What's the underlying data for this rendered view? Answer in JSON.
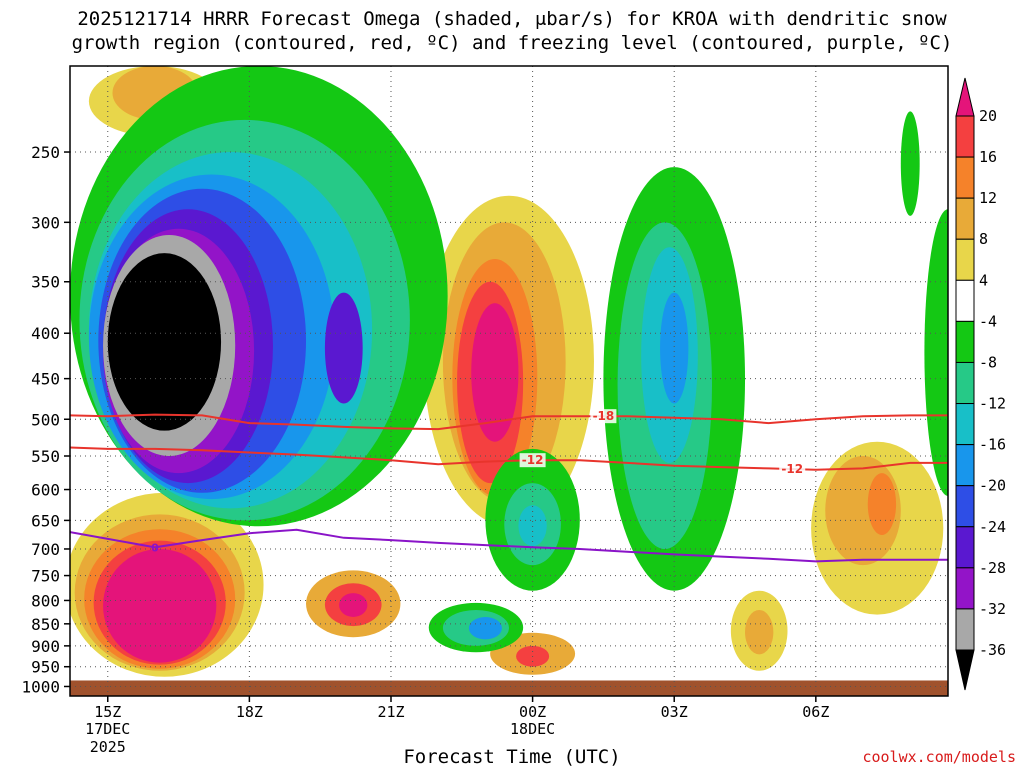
{
  "header": {
    "title_line1": "2025121714 HRRR Forecast Omega (shaded, μbar/s) for KROA with dendritic snow",
    "title_line2": "growth region (contoured, red, ºC) and freezing level (contoured, purple, ºC)"
  },
  "footer": {
    "xaxis_title": "Forecast Time (UTC)",
    "credit": "coolwx.com/models"
  },
  "chart_data": {
    "type": "heatmap",
    "title": "2025121714 HRRR Forecast Omega (shaded, μbar/s) for KROA with dendritic snow growth region (contoured, red, ºC) and freezing level (contoured, purple, ºC)",
    "xlabel": "Forecast Time (UTC)",
    "ylabel": "",
    "x_range_hours": [
      14.2,
      32.8
    ],
    "y_range_mb": [
      1025,
      200
    ],
    "grid": "dotted",
    "y_ticks": [
      250,
      300,
      350,
      400,
      450,
      500,
      550,
      600,
      650,
      700,
      750,
      800,
      850,
      900,
      950,
      1000
    ],
    "x_ticks": [
      {
        "hour": 15,
        "label": "15Z",
        "sub1": "17DEC",
        "sub2": "2025"
      },
      {
        "hour": 18,
        "label": "18Z",
        "sub1": "",
        "sub2": ""
      },
      {
        "hour": 21,
        "label": "21Z",
        "sub1": "",
        "sub2": ""
      },
      {
        "hour": 24,
        "label": "00Z",
        "sub1": "18DEC",
        "sub2": ""
      },
      {
        "hour": 27,
        "label": "03Z",
        "sub1": "",
        "sub2": ""
      },
      {
        "hour": 30,
        "label": "06Z",
        "sub1": "",
        "sub2": ""
      }
    ],
    "colorbar": {
      "labels": [
        "20",
        "16",
        "12",
        "8",
        "4",
        "-4",
        "-8",
        "-12",
        "-16",
        "-20",
        "-24",
        "-28",
        "-32",
        "-36"
      ],
      "levels": [
        20,
        16,
        12,
        8,
        4,
        -4,
        -8,
        -12,
        -16,
        -20,
        -24,
        -28,
        -32,
        -36
      ],
      "colors": [
        "#e4147a",
        "#f44040",
        "#f5822a",
        "#e8aa38",
        "#e8d64a",
        "#ffffff",
        "#14c814",
        "#26c987",
        "#18bfc8",
        "#1896ec",
        "#2e4ee6",
        "#5a18d0",
        "#9314c8",
        "#a8a8a8",
        "#000000"
      ]
    },
    "omega_regions": [
      {
        "level": 4,
        "color": "#e8d64a",
        "hour": 16.2,
        "mb": 790,
        "rh": 2.1,
        "rmb": 185
      },
      {
        "level": 8,
        "color": "#e8aa38",
        "hour": 16.1,
        "mb": 800,
        "rh": 1.8,
        "rmb": 160
      },
      {
        "level": 12,
        "color": "#f5822a",
        "hour": 16.1,
        "mb": 810,
        "rh": 1.6,
        "rmb": 145
      },
      {
        "level": 16,
        "color": "#f44040",
        "hour": 16.1,
        "mb": 815,
        "rh": 1.4,
        "rmb": 130
      },
      {
        "level": 20,
        "color": "#e4147a",
        "hour": 16.1,
        "mb": 820,
        "rh": 1.2,
        "rmb": 120
      },
      {
        "level": 4,
        "color": "#e8d64a",
        "hour": 23.5,
        "mb": 470,
        "rh": 1.8,
        "rmb": 190
      },
      {
        "level": 8,
        "color": "#e8aa38",
        "hour": 23.4,
        "mb": 460,
        "rh": 1.3,
        "rmb": 160
      },
      {
        "level": 12,
        "color": "#f5822a",
        "hour": 23.2,
        "mb": 470,
        "rh": 0.9,
        "rmb": 140
      },
      {
        "level": 16,
        "color": "#f44040",
        "hour": 23.1,
        "mb": 470,
        "rh": 0.7,
        "rmb": 120
      },
      {
        "level": 20,
        "color": "#e4147a",
        "hour": 23.2,
        "mb": 450,
        "rh": 0.5,
        "rmb": 80
      },
      {
        "level": 8,
        "color": "#e8aa38",
        "hour": 20.2,
        "mb": 810,
        "rh": 1.0,
        "rmb": 70
      },
      {
        "level": 16,
        "color": "#f44040",
        "hour": 20.2,
        "mb": 810,
        "rh": 0.6,
        "rmb": 45
      },
      {
        "level": 20,
        "color": "#e4147a",
        "hour": 20.2,
        "mb": 810,
        "rh": 0.3,
        "rmb": 25
      },
      {
        "level": 4,
        "color": "#e8d64a",
        "hour": 16.0,
        "mb": 215,
        "rh": 1.4,
        "rmb": 25
      },
      {
        "level": 8,
        "color": "#e8aa38",
        "hour": 16.0,
        "mb": 215,
        "rh": 0.9,
        "rmb": 15
      },
      {
        "level": 4,
        "color": "#e8d64a",
        "hour": 31.3,
        "mb": 680,
        "rh": 1.4,
        "rmb": 150
      },
      {
        "level": 8,
        "color": "#e8aa38",
        "hour": 31.0,
        "mb": 640,
        "rh": 0.8,
        "rmb": 90
      },
      {
        "level": 12,
        "color": "#f5822a",
        "hour": 31.4,
        "mb": 625,
        "rh": 0.3,
        "rmb": 50
      },
      {
        "level": 4,
        "color": "#e8d64a",
        "hour": 28.8,
        "mb": 870,
        "rh": 0.6,
        "rmb": 90
      },
      {
        "level": 8,
        "color": "#e8aa38",
        "hour": 28.8,
        "mb": 870,
        "rh": 0.3,
        "rmb": 50
      },
      {
        "level": 8,
        "color": "#e8aa38",
        "hour": 24.0,
        "mb": 920,
        "rh": 0.9,
        "rmb": 50
      },
      {
        "level": 16,
        "color": "#f44040",
        "hour": 24.0,
        "mb": 925,
        "rh": 0.35,
        "rmb": 25
      },
      {
        "level": -4,
        "color": "#14c814",
        "hour": 18.2,
        "mb": 430,
        "rh": 4.0,
        "rmb": 230
      },
      {
        "level": -8,
        "color": "#26c987",
        "hour": 17.9,
        "mb": 440,
        "rh": 3.5,
        "rmb": 210
      },
      {
        "level": -12,
        "color": "#18bfc8",
        "hour": 17.6,
        "mb": 440,
        "rh": 3.0,
        "rmb": 190
      },
      {
        "level": -16,
        "color": "#1896ec",
        "hour": 17.2,
        "mb": 440,
        "rh": 2.6,
        "rmb": 175
      },
      {
        "level": -20,
        "color": "#2e4ee6",
        "hour": 17.0,
        "mb": 440,
        "rh": 2.2,
        "rmb": 165
      },
      {
        "level": -24,
        "color": "#5a18d0",
        "hour": 16.7,
        "mb": 440,
        "rh": 1.8,
        "rmb": 150
      },
      {
        "level": -28,
        "color": "#9314c8",
        "hour": 16.5,
        "mb": 440,
        "rh": 1.6,
        "rmb": 135
      },
      {
        "level": -32,
        "color": "#a8a8a8",
        "hour": 16.3,
        "mb": 430,
        "rh": 1.4,
        "rmb": 120
      },
      {
        "level": -36,
        "color": "#000000",
        "hour": 16.2,
        "mb": 420,
        "rh": 1.2,
        "rmb": 95
      },
      {
        "level": -24,
        "color": "#5a18d0",
        "hour": 20.0,
        "mb": 420,
        "rh": 0.4,
        "rmb": 60
      },
      {
        "level": -4,
        "color": "#14c814",
        "hour": 27.0,
        "mb": 520,
        "rh": 1.5,
        "rmb": 260
      },
      {
        "level": -8,
        "color": "#26c987",
        "hour": 26.8,
        "mb": 500,
        "rh": 1.0,
        "rmb": 200
      },
      {
        "level": -12,
        "color": "#18bfc8",
        "hour": 26.9,
        "mb": 440,
        "rh": 0.6,
        "rmb": 120
      },
      {
        "level": -16,
        "color": "#1896ec",
        "hour": 27.0,
        "mb": 420,
        "rh": 0.3,
        "rmb": 60
      },
      {
        "level": -4,
        "color": "#14c814",
        "hour": 24.0,
        "mb": 660,
        "rh": 1.0,
        "rmb": 120
      },
      {
        "level": -8,
        "color": "#26c987",
        "hour": 24.0,
        "mb": 660,
        "rh": 0.6,
        "rmb": 70
      },
      {
        "level": -12,
        "color": "#18bfc8",
        "hour": 24.0,
        "mb": 660,
        "rh": 0.3,
        "rmb": 35
      },
      {
        "level": -4,
        "color": "#14c814",
        "hour": 22.8,
        "mb": 860,
        "rh": 1.0,
        "rmb": 55
      },
      {
        "level": -8,
        "color": "#26c987",
        "hour": 22.8,
        "mb": 860,
        "rh": 0.7,
        "rmb": 40
      },
      {
        "level": -16,
        "color": "#1896ec",
        "hour": 23.0,
        "mb": 860,
        "rh": 0.35,
        "rmb": 25
      },
      {
        "level": -4,
        "color": "#14c814",
        "hour": 32.8,
        "mb": 450,
        "rh": 0.5,
        "rmb": 160
      },
      {
        "level": -4,
        "color": "#14c814",
        "hour": 32.0,
        "mb": 260,
        "rh": 0.2,
        "rmb": 35
      }
    ],
    "dgz_contours": [
      {
        "label": "-18",
        "color": "#e8342c",
        "points": [
          [
            14.2,
            495
          ],
          [
            15,
            496
          ],
          [
            16,
            494
          ],
          [
            17,
            495
          ],
          [
            18,
            505
          ],
          [
            19,
            507
          ],
          [
            20,
            510
          ],
          [
            21,
            512
          ],
          [
            22,
            513
          ],
          [
            23,
            505
          ],
          [
            24,
            496
          ],
          [
            25,
            496
          ],
          [
            26,
            496
          ],
          [
            27,
            498
          ],
          [
            28,
            500
          ],
          [
            29,
            505
          ],
          [
            30,
            500
          ],
          [
            31,
            496
          ],
          [
            32,
            495
          ],
          [
            32.8,
            495
          ]
        ]
      },
      {
        "label": "-12",
        "color": "#e8342c",
        "points": [
          [
            14.2,
            538
          ],
          [
            15,
            540
          ],
          [
            16,
            540
          ],
          [
            17,
            542
          ],
          [
            18,
            545
          ],
          [
            19,
            548
          ],
          [
            20,
            552
          ],
          [
            21,
            556
          ],
          [
            22,
            562
          ],
          [
            23,
            558
          ],
          [
            24,
            556
          ],
          [
            25,
            556
          ],
          [
            26,
            560
          ],
          [
            27,
            564
          ],
          [
            28,
            566
          ],
          [
            29,
            568
          ],
          [
            30,
            570
          ],
          [
            31,
            568
          ],
          [
            32,
            560
          ],
          [
            32.8,
            560
          ]
        ]
      }
    ],
    "freezing_level": [
      {
        "label": "0",
        "color": "#8a14c8",
        "points": [
          [
            14.2,
            670
          ],
          [
            15,
            682
          ],
          [
            16,
            697
          ],
          [
            17,
            684
          ],
          [
            18,
            672
          ],
          [
            19,
            666
          ],
          [
            20,
            680
          ],
          [
            21,
            684
          ],
          [
            22,
            689
          ],
          [
            23,
            693
          ],
          [
            24,
            697
          ],
          [
            25,
            700
          ],
          [
            26,
            705
          ],
          [
            27,
            710
          ],
          [
            28,
            714
          ],
          [
            29,
            718
          ],
          [
            30,
            723
          ],
          [
            31,
            720
          ],
          [
            32,
            720
          ],
          [
            32.8,
            720
          ]
        ]
      }
    ]
  }
}
